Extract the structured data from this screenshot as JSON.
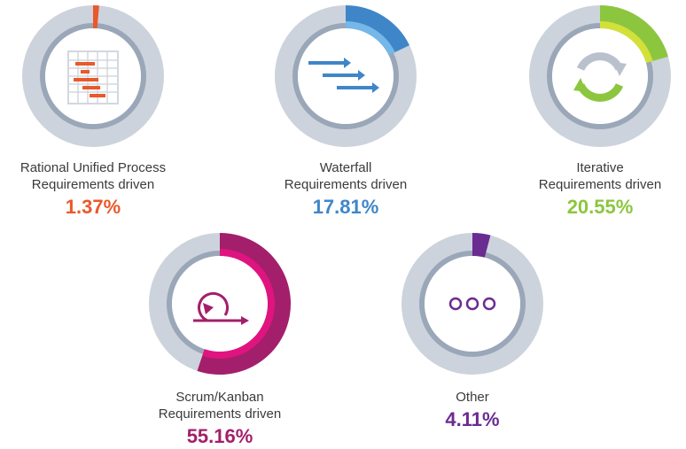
{
  "chart_data": {
    "type": "pie",
    "title": "",
    "items": [
      {
        "label_line1": "Rational Unified Process",
        "label_line2": "Requirements driven",
        "percent_text": "1.37%",
        "value": 1.37,
        "color": "#e9592b",
        "inner_color": "#e9592b",
        "icon": "gantt-chart-icon"
      },
      {
        "label_line1": "Waterfall",
        "label_line2": "Requirements driven",
        "percent_text": "17.81%",
        "value": 17.81,
        "color": "#3f86c8",
        "inner_color": "#74b7e8",
        "icon": "waterfall-arrows-icon"
      },
      {
        "label_line1": "Iterative",
        "label_line2": "Requirements driven",
        "percent_text": "20.55%",
        "value": 20.55,
        "color": "#8cc63f",
        "inner_color": "#d3e03a",
        "icon": "cycle-arrows-icon"
      },
      {
        "label_line1": "Scrum/Kanban",
        "label_line2": "Requirements driven",
        "percent_text": "55.16%",
        "value": 55.16,
        "color": "#a31f6b",
        "inner_color": "#e0147f",
        "icon": "scrum-loop-icon"
      },
      {
        "label_line1": "Other",
        "label_line2": "",
        "percent_text": "4.11%",
        "value": 4.11,
        "color": "#6a2c91",
        "inner_color": "#6a2c91",
        "icon": "three-circles-icon"
      }
    ]
  },
  "colors": {
    "track": "#cdd3dc",
    "inner_ring": "#9aa7b8",
    "text": "#3b3b3b"
  }
}
